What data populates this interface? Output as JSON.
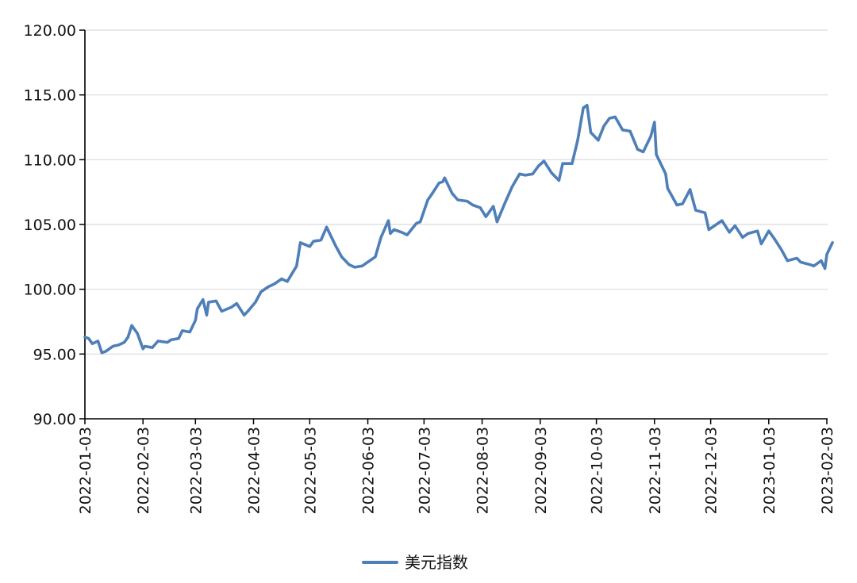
{
  "chart_data": {
    "type": "line",
    "title": "",
    "xlabel": "",
    "ylabel": "",
    "ylim": [
      90,
      120
    ],
    "y_ticks": [
      "90.00",
      "95.00",
      "100.00",
      "105.00",
      "110.00",
      "115.00",
      "120.00"
    ],
    "x_ticks": [
      "2022-01-03",
      "2022-02-03",
      "2022-03-03",
      "2022-04-03",
      "2022-05-03",
      "2022-06-03",
      "2022-07-03",
      "2022-08-03",
      "2022-09-03",
      "2022-10-03",
      "2022-11-03",
      "2022-12-03",
      "2023-01-03",
      "2023-02-03"
    ],
    "grid": "horizontal",
    "legend_position": "bottom-center",
    "colors": {
      "series": "#4f7fb8",
      "grid": "#d9d9d9",
      "axis": "#000000"
    },
    "series": [
      {
        "name": "美元指数",
        "x": [
          "2022-01-03",
          "2022-01-05",
          "2022-01-07",
          "2022-01-10",
          "2022-01-12",
          "2022-01-14",
          "2022-01-18",
          "2022-01-21",
          "2022-01-24",
          "2022-01-26",
          "2022-01-28",
          "2022-01-31",
          "2022-02-03",
          "2022-02-04",
          "2022-02-08",
          "2022-02-11",
          "2022-02-16",
          "2022-02-18",
          "2022-02-22",
          "2022-02-24",
          "2022-02-28",
          "2022-03-03",
          "2022-03-04",
          "2022-03-07",
          "2022-03-09",
          "2022-03-10",
          "2022-03-14",
          "2022-03-17",
          "2022-03-22",
          "2022-03-25",
          "2022-03-29",
          "2022-03-31",
          "2022-04-04",
          "2022-04-07",
          "2022-04-11",
          "2022-04-14",
          "2022-04-18",
          "2022-04-21",
          "2022-04-26",
          "2022-04-28",
          "2022-05-03",
          "2022-05-05",
          "2022-05-09",
          "2022-05-12",
          "2022-05-13",
          "2022-05-17",
          "2022-05-20",
          "2022-05-24",
          "2022-05-27",
          "2022-05-31",
          "2022-06-03",
          "2022-06-07",
          "2022-06-10",
          "2022-06-14",
          "2022-06-15",
          "2022-06-17",
          "2022-06-21",
          "2022-06-24",
          "2022-06-29",
          "2022-07-01",
          "2022-07-05",
          "2022-07-07",
          "2022-07-11",
          "2022-07-13",
          "2022-07-14",
          "2022-07-18",
          "2022-07-21",
          "2022-07-26",
          "2022-07-29",
          "2022-08-02",
          "2022-08-05",
          "2022-08-09",
          "2022-08-11",
          "2022-08-15",
          "2022-08-19",
          "2022-08-23",
          "2022-08-26",
          "2022-08-30",
          "2022-09-02",
          "2022-09-05",
          "2022-09-09",
          "2022-09-13",
          "2022-09-15",
          "2022-09-20",
          "2022-09-23",
          "2022-09-26",
          "2022-09-28",
          "2022-09-30",
          "2022-10-04",
          "2022-10-07",
          "2022-10-10",
          "2022-10-13",
          "2022-10-17",
          "2022-10-21",
          "2022-10-25",
          "2022-10-28",
          "2022-11-01",
          "2022-11-03",
          "2022-11-04",
          "2022-11-09",
          "2022-11-10",
          "2022-11-15",
          "2022-11-18",
          "2022-11-22",
          "2022-11-25",
          "2022-11-30",
          "2022-12-02",
          "2022-12-06",
          "2022-12-09",
          "2022-12-13",
          "2022-12-16",
          "2022-12-20",
          "2022-12-23",
          "2022-12-28",
          "2022-12-30",
          "2023-01-03",
          "2023-01-06",
          "2023-01-10",
          "2023-01-13",
          "2023-01-18",
          "2023-01-20",
          "2023-01-25",
          "2023-01-27",
          "2023-01-31",
          "2023-02-02",
          "2023-02-03",
          "2023-02-06"
        ],
        "values": [
          96.3,
          96.2,
          95.8,
          96.0,
          95.1,
          95.2,
          95.6,
          95.7,
          95.9,
          96.3,
          97.2,
          96.6,
          95.4,
          95.6,
          95.5,
          96.0,
          95.9,
          96.1,
          96.2,
          96.8,
          96.7,
          97.6,
          98.5,
          99.2,
          98.0,
          99.0,
          99.1,
          98.3,
          98.6,
          98.9,
          98.0,
          98.3,
          99.0,
          99.8,
          100.2,
          100.4,
          100.8,
          100.6,
          101.8,
          103.6,
          103.3,
          103.7,
          103.8,
          104.8,
          104.5,
          103.3,
          102.5,
          101.9,
          101.7,
          101.8,
          102.1,
          102.5,
          104.0,
          105.3,
          104.3,
          104.6,
          104.4,
          104.2,
          105.1,
          105.2,
          106.9,
          107.3,
          108.2,
          108.3,
          108.6,
          107.4,
          106.9,
          106.8,
          106.5,
          106.3,
          105.6,
          106.4,
          105.2,
          106.6,
          107.9,
          108.9,
          108.8,
          108.9,
          109.5,
          109.9,
          109.0,
          108.4,
          109.7,
          109.7,
          111.5,
          114.0,
          114.2,
          112.1,
          111.5,
          112.6,
          113.2,
          113.3,
          112.3,
          112.2,
          110.8,
          110.6,
          111.8,
          112.9,
          110.4,
          108.9,
          107.8,
          106.5,
          106.6,
          107.7,
          106.1,
          105.9,
          104.6,
          105.0,
          105.3,
          104.4,
          104.9,
          104.0,
          104.3,
          104.5,
          103.5,
          104.5,
          103.9,
          103.0,
          102.2,
          102.4,
          102.1,
          101.9,
          101.8,
          102.2,
          101.6,
          102.7,
          103.6
        ]
      }
    ]
  },
  "legend": {
    "label": "美元指数"
  }
}
